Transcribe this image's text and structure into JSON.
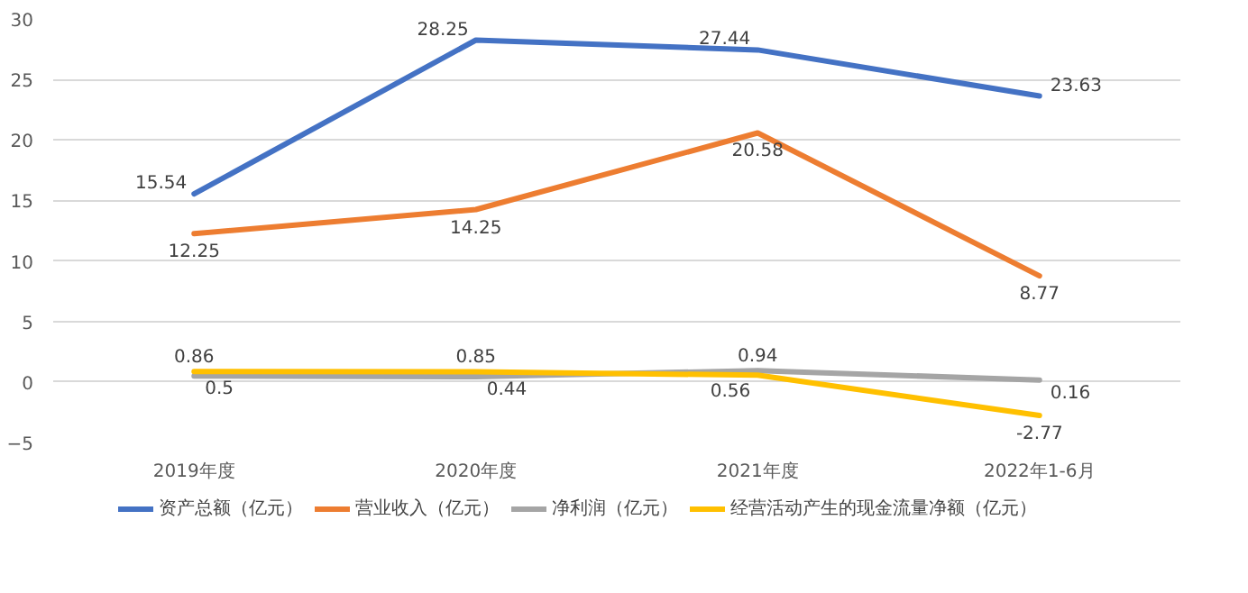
{
  "chart_data": {
    "type": "line",
    "categories": [
      "2019年度",
      "2020年度",
      "2021年度",
      "2022年1-6月"
    ],
    "series": [
      {
        "name": "资产总额（亿元）",
        "color": "#4472c4",
        "values": [
          15.54,
          28.25,
          27.44,
          23.63
        ]
      },
      {
        "name": "营业收入（亿元）",
        "color": "#ed7d31",
        "values": [
          12.25,
          14.25,
          20.58,
          8.77
        ]
      },
      {
        "name": "净利润（亿元）",
        "color": "#a5a5a5",
        "values": [
          0.5,
          0.44,
          0.94,
          0.16
        ]
      },
      {
        "name": "经营活动产生的现金流量净额（亿元）",
        "color": "#ffc000",
        "values": [
          0.86,
          0.85,
          0.56,
          -2.77
        ]
      }
    ],
    "ylim": [
      -5,
      30
    ],
    "yticks": [
      -5,
      0,
      5,
      10,
      15,
      20,
      25,
      30
    ],
    "grid": "y",
    "legend": "bottom",
    "data_labels": true,
    "marker": "none",
    "line_style": "solid"
  }
}
